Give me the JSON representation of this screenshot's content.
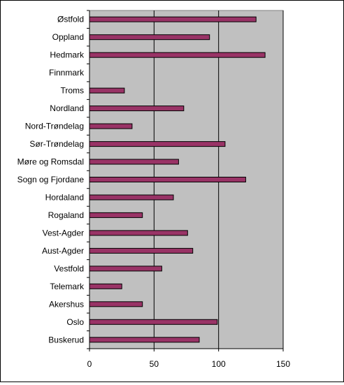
{
  "chart_data": {
    "type": "bar",
    "orientation": "horizontal",
    "title": "",
    "xlabel": "",
    "ylabel": "",
    "categories": [
      "Østfold",
      "Oppland",
      "Hedmark",
      "Finnmark",
      "Troms",
      "Nordland",
      "Nord-Trøndelag",
      "Sør-Trøndelag",
      "Møre og Romsdal",
      "Sogn og Fjordane",
      "Hordaland",
      "Rogaland",
      "Vest-Agder",
      "Aust-Agder",
      "Vestfold",
      "Telemark",
      "Akershus",
      "Oslo",
      "Buskerud"
    ],
    "values": [
      129,
      93,
      136,
      0,
      27,
      73,
      33,
      105,
      69,
      121,
      65,
      41,
      76,
      80,
      56,
      25,
      41,
      99,
      85
    ],
    "xlim": [
      0,
      150
    ],
    "xticks": [
      0,
      50,
      100,
      150
    ],
    "grid": "vertical",
    "legend": "none",
    "colors": {
      "bar_fill": "#993366",
      "bar_stroke": "#000000",
      "plot_background": "#c0c0c0",
      "gridline": "#000000"
    }
  }
}
